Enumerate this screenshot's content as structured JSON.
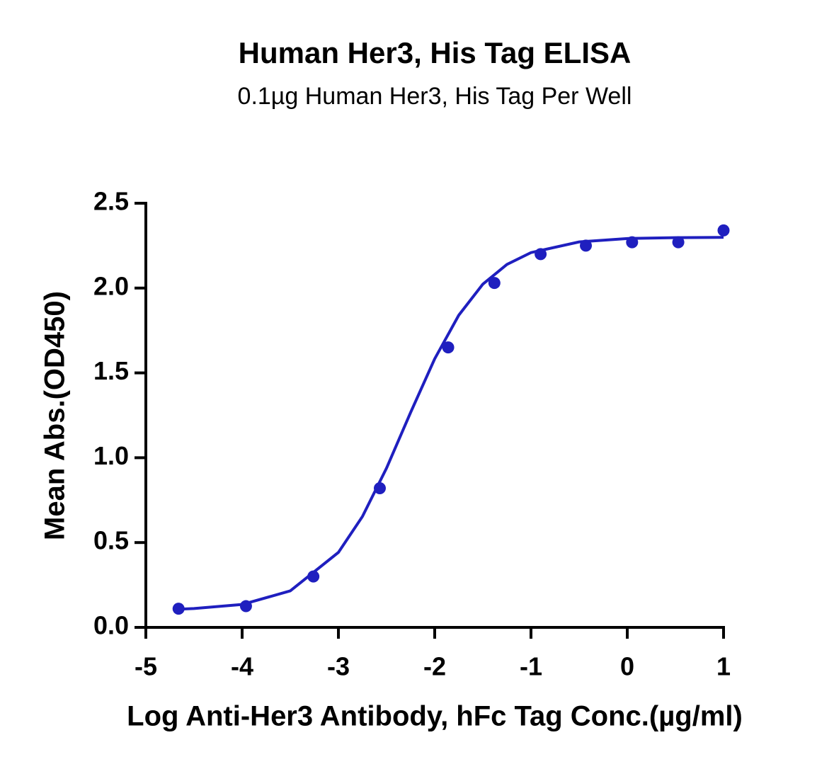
{
  "chart_data": {
    "type": "scatter",
    "title": "Human Her3, His Tag ELISA",
    "subtitle": "0.1µg Human Her3, His Tag Per Well",
    "x_label": "Log Anti-Her3 Antibody, hFc Tag Conc.(µg/ml)",
    "y_label": "Mean Abs.(OD450)",
    "xlim": [
      -5,
      1
    ],
    "xticks": [
      -5,
      -4,
      -3,
      -2,
      -1,
      0,
      1
    ],
    "ylim": [
      0,
      2.5
    ],
    "yticks": [
      {
        "value": 0,
        "label": "0.0"
      },
      0.5,
      {
        "value": 1,
        "label": "1.0"
      },
      1.5,
      {
        "value": 2,
        "label": "2.0"
      },
      2.5
    ],
    "series": [
      {
        "type": "scatter",
        "color": "#1f1fbf",
        "x": [
          -4.66,
          -3.96,
          -3.26,
          -2.57,
          -1.86,
          -1.38,
          -0.9,
          -0.43,
          0.05,
          0.53,
          1.0
        ],
        "values": [
          0.11,
          0.125,
          0.3,
          0.82,
          1.65,
          2.03,
          2.2,
          2.25,
          2.27,
          2.27,
          2.34
        ]
      },
      {
        "type": "line",
        "color": "#1f1fbf",
        "x": [
          -4.66,
          -4.5,
          -4,
          -3.5,
          -3,
          -2.75,
          -2.5,
          -2.25,
          -2,
          -1.75,
          -1.5,
          -1.25,
          -1,
          -0.5,
          0,
          0.5,
          1
        ],
        "values": [
          0.107,
          0.111,
          0.135,
          0.215,
          0.442,
          0.654,
          0.939,
          1.267,
          1.583,
          1.84,
          2.023,
          2.139,
          2.209,
          2.272,
          2.292,
          2.297,
          2.299
        ]
      }
    ]
  }
}
